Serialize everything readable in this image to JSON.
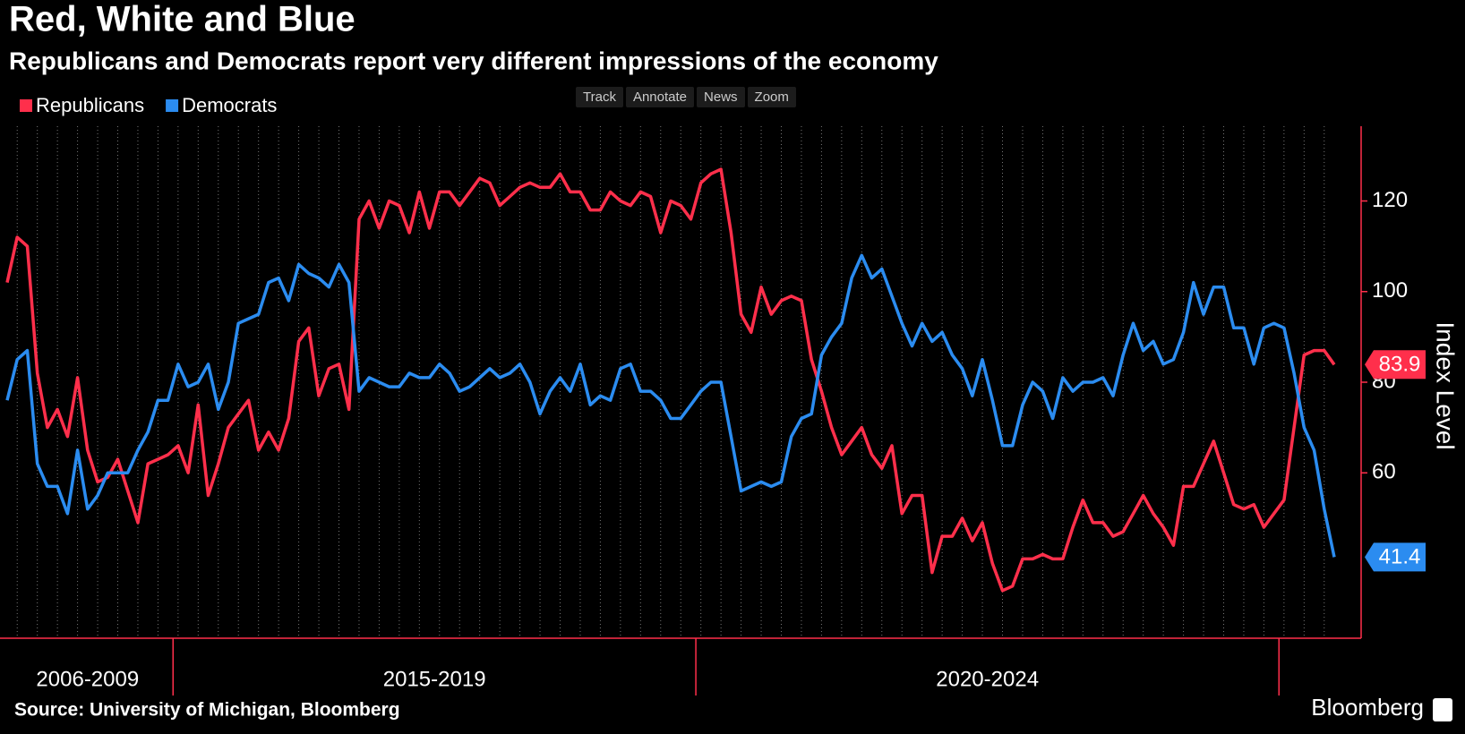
{
  "chart_data": {
    "type": "line",
    "title": "Red, White and Blue",
    "subtitle": "Republicans and Democrats report very different impressions of the economy",
    "y_label": "Index Level",
    "source": "Source: University of Michigan, Bloomberg",
    "brand": "Bloomberg",
    "toolbar": [
      "Track",
      "Annotate",
      "News",
      "Zoom"
    ],
    "periods": [
      {
        "label": "2006-2009",
        "count": 17
      },
      {
        "label": "2015-2019",
        "count": 52
      },
      {
        "label": "2020-2024",
        "count": 58
      },
      {
        "label": null,
        "count": 6
      }
    ],
    "ylim": [
      23.5,
      136.5
    ],
    "yticks": [
      60,
      80,
      100,
      120
    ],
    "axis_color": "#ff2f4b",
    "series": [
      {
        "name": "Republicans",
        "color": "#ff2f4b",
        "values": [
          102,
          112,
          110,
          82,
          70,
          74,
          68,
          81,
          65,
          58,
          59,
          63,
          56,
          49,
          62,
          63,
          64,
          66,
          60,
          75,
          55,
          62,
          70,
          73,
          76,
          65,
          69,
          65,
          72,
          89,
          92,
          77,
          83,
          84,
          74,
          116,
          120,
          114,
          120,
          119,
          113,
          122,
          114,
          122,
          122,
          119,
          122,
          125,
          124,
          119,
          121,
          123,
          124,
          123,
          123,
          126,
          122,
          122,
          118,
          118,
          122,
          120,
          119,
          122,
          121,
          113,
          120,
          119,
          116,
          124,
          126,
          127,
          113,
          95,
          91,
          101,
          95,
          98,
          99,
          98,
          85,
          78,
          70,
          64,
          67,
          70,
          64,
          61,
          66,
          51,
          55,
          55,
          38,
          46,
          46,
          50,
          45,
          49,
          40,
          34,
          35,
          41,
          41,
          42,
          41,
          41,
          48,
          54,
          49,
          49,
          46,
          47,
          51,
          55,
          51,
          48,
          44,
          57,
          57,
          62,
          67,
          60,
          53,
          52,
          53,
          48,
          51,
          54,
          70,
          86,
          87,
          87,
          83.9
        ]
      },
      {
        "name": "Democrats",
        "color": "#2b8cf0",
        "values": [
          76,
          85,
          87,
          62,
          57,
          57,
          51,
          65,
          52,
          55,
          60,
          60,
          60,
          65,
          69,
          76,
          76,
          84,
          79,
          80,
          84,
          74,
          80,
          93,
          94,
          95,
          102,
          103,
          98,
          106,
          104,
          103,
          101,
          106,
          102,
          78,
          81,
          80,
          79,
          79,
          82,
          81,
          81,
          84,
          82,
          78,
          79,
          81,
          83,
          81,
          82,
          84,
          80,
          73,
          78,
          81,
          78,
          84,
          75,
          77,
          76,
          83,
          84,
          78,
          78,
          76,
          72,
          72,
          75,
          78,
          80,
          80,
          68,
          56,
          57,
          58,
          57,
          58,
          68,
          72,
          73,
          86,
          90,
          93,
          103,
          108,
          103,
          105,
          99,
          93,
          88,
          93,
          89,
          91,
          86,
          83,
          77,
          85,
          76,
          66,
          66,
          75,
          80,
          78,
          72,
          81,
          78,
          80,
          80,
          81,
          77,
          86,
          93,
          87,
          89,
          84,
          85,
          91,
          102,
          95,
          101,
          101,
          92,
          92,
          84,
          92,
          93,
          92,
          82,
          70,
          65,
          52,
          41.4
        ]
      }
    ]
  }
}
